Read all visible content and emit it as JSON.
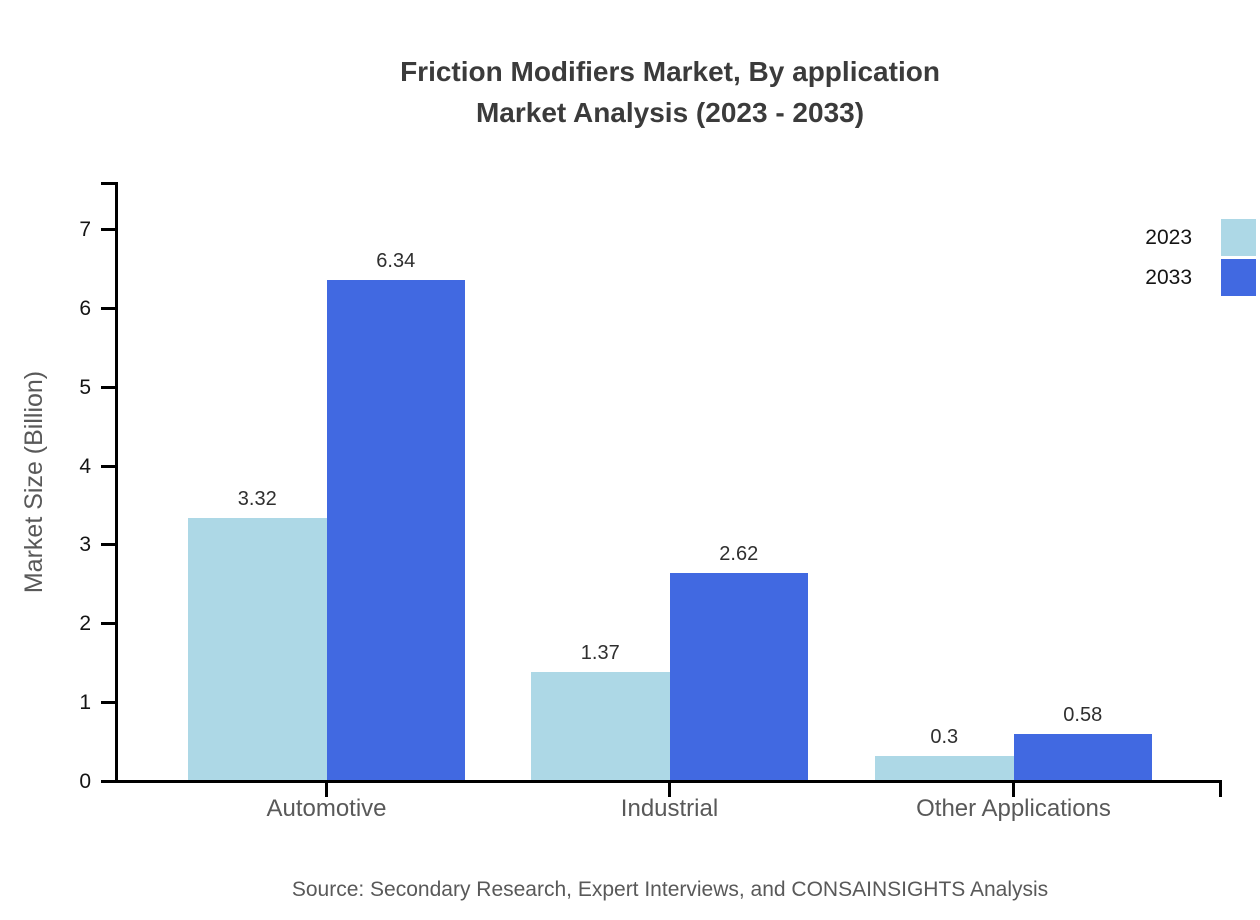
{
  "title": {
    "line1": "Friction Modifiers Market, By application",
    "line2": "Market Analysis (2023 - 2033)"
  },
  "source_note": "Source: Secondary Research, Expert Interviews, and CONSAINSIGHTS Analysis",
  "colors": {
    "series_2023": "#ADD8E6",
    "series_2033": "#4169E1",
    "axis": "#000000",
    "title_text": "#3b3b3b",
    "muted_text": "#595959"
  },
  "chart_data": {
    "type": "bar",
    "title": "Friction Modifiers Market, By application Market Analysis (2023 - 2033)",
    "categories": [
      "Automotive",
      "Industrial",
      "Other Applications"
    ],
    "series": [
      {
        "name": "2023",
        "color": "#ADD8E6",
        "values": [
          3.32,
          1.37,
          0.3
        ],
        "labels": [
          "3.32",
          "1.37",
          "0.3"
        ]
      },
      {
        "name": "2033",
        "color": "#4169E1",
        "values": [
          6.34,
          2.62,
          0.58
        ],
        "labels": [
          "6.34",
          "2.62",
          "0.58"
        ]
      }
    ],
    "xlabel": "",
    "ylabel": "Market Size (Billion)",
    "ylim": [
      0,
      7.6
    ],
    "yticks": [
      0,
      1,
      2,
      3,
      4,
      5,
      6,
      7
    ],
    "grid": false,
    "legend_position": "top-right"
  }
}
